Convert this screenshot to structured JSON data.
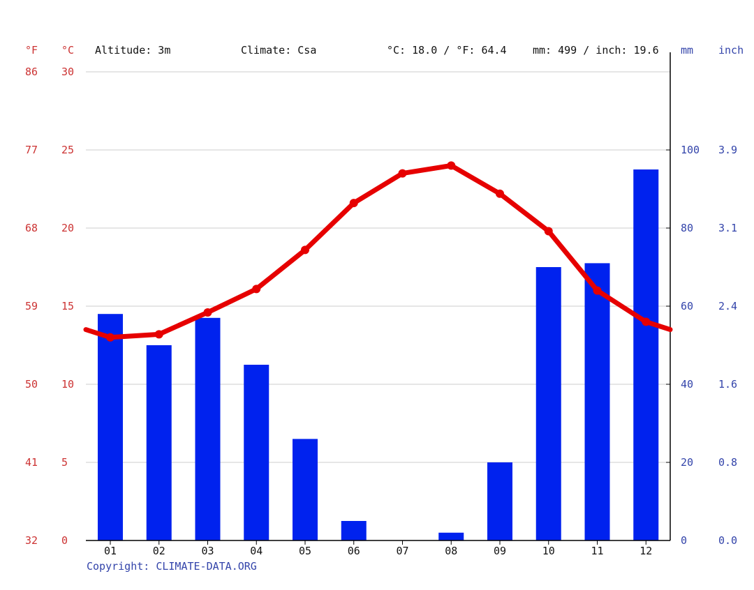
{
  "header": {
    "unit_f": "°F",
    "unit_c": "°C",
    "altitude": "Altitude: 3m",
    "climate": "Climate: Csa",
    "avg_temp": "°C: 18.0 / °F: 64.4",
    "precip_total": "mm: 499 / inch: 19.6",
    "unit_mm": "mm",
    "unit_inch": "inch"
  },
  "copyright": "Copyright: CLIMATE-DATA.ORG",
  "colors": {
    "temperature": "#e60000",
    "precipitation": "#0022ee",
    "temp_labels": "#cc3333",
    "precip_labels": "#3344aa",
    "grid": "#cccccc"
  },
  "chart_data": {
    "type": "bar+line",
    "categories": [
      "01",
      "02",
      "03",
      "04",
      "05",
      "06",
      "07",
      "08",
      "09",
      "10",
      "11",
      "12"
    ],
    "series": [
      {
        "kind": "bar",
        "axis": "right",
        "values": [
          58,
          50,
          57,
          45,
          26,
          5,
          0,
          2,
          20,
          70,
          71,
          95
        ]
      },
      {
        "kind": "line",
        "axis": "left",
        "values": [
          13.0,
          13.2,
          14.6,
          16.1,
          18.6,
          21.6,
          23.5,
          24.0,
          22.2,
          19.8,
          16.0,
          14.0
        ],
        "edge_start": 13.5,
        "edge_end": 13.5
      }
    ],
    "y_left": {
      "unit": "°C",
      "ylim": [
        0,
        30
      ],
      "ticks": [
        "0",
        "5",
        "10",
        "15",
        "20",
        "25",
        "30"
      ]
    },
    "y_left_secondary": {
      "unit": "°F",
      "ticks": [
        "32",
        "41",
        "50",
        "59",
        "68",
        "77",
        "86"
      ]
    },
    "y_right": {
      "unit": "mm",
      "ylim": [
        0,
        120
      ],
      "ticks": [
        "0",
        "20",
        "40",
        "60",
        "80",
        "100"
      ]
    },
    "y_right_secondary": {
      "unit": "inch",
      "ticks": [
        "0.0",
        "0.8",
        "1.6",
        "2.4",
        "3.1",
        "3.9"
      ]
    },
    "grid": true
  }
}
